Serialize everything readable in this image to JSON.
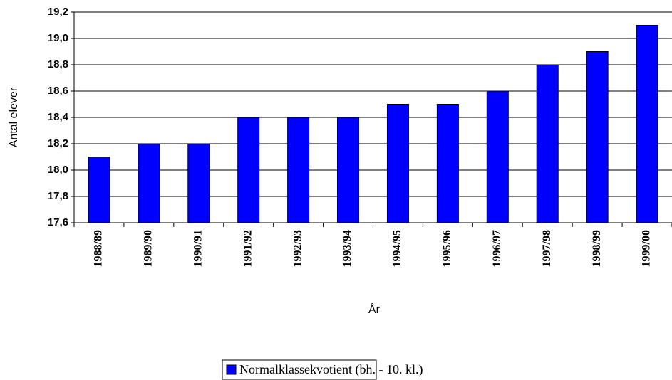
{
  "chart_data": {
    "type": "bar",
    "categories": [
      "1988/89",
      "1989/90",
      "1990/91",
      "1991/92",
      "1992/93",
      "1993/94",
      "1994/95",
      "1995/96",
      "1996/97",
      "1997/98",
      "1998/99",
      "1999/00"
    ],
    "series": [
      {
        "name": "Normalklassekvotient (bh. - 10. kl.)",
        "color": "#0000ff",
        "values": [
          18.1,
          18.2,
          18.2,
          18.4,
          18.4,
          18.4,
          18.5,
          18.5,
          18.6,
          18.8,
          18.9,
          19.1
        ]
      }
    ],
    "x_label": "År",
    "y_label": "Antal elever",
    "ylim": [
      17.6,
      19.2
    ],
    "yticks": [
      {
        "value": 17.6,
        "label": "17,6"
      },
      {
        "value": 17.8,
        "label": "17,8"
      },
      {
        "value": 18.0,
        "label": "18,0"
      },
      {
        "value": 18.2,
        "label": "18,2"
      },
      {
        "value": 18.4,
        "label": "18,4"
      },
      {
        "value": 18.6,
        "label": "18,6"
      },
      {
        "value": 18.8,
        "label": "18,8"
      },
      {
        "value": 19.0,
        "label": "19,0"
      },
      {
        "value": 19.2,
        "label": "19,2"
      }
    ],
    "grid": true
  }
}
